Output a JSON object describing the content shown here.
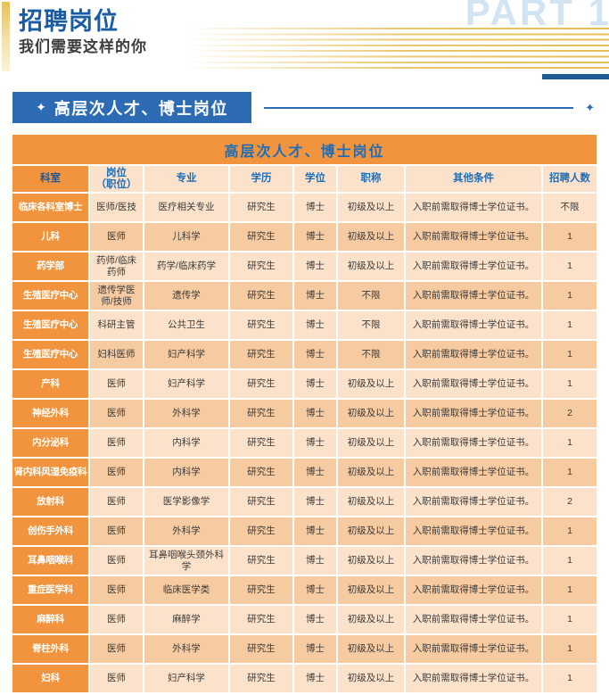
{
  "header": {
    "title": "招聘岗位",
    "subtitle": "我们需要这样的你",
    "part_label": "PART 1"
  },
  "section": {
    "star_icon": "✦",
    "title": "高层次人才、博士岗位"
  },
  "table": {
    "title": "高层次人才、博士岗位",
    "columns": [
      "科室",
      "岗位\n（职位）",
      "专业",
      "学历",
      "学位",
      "职称",
      "其他条件",
      "招聘人数"
    ],
    "rows": [
      [
        "临床各科室博士",
        "医师/医技",
        "医疗相关专业",
        "研究生",
        "博士",
        "初级及以上",
        "入职前需取得博士学位证书。",
        "不限"
      ],
      [
        "儿科",
        "医师",
        "儿科学",
        "研究生",
        "博士",
        "初级及以上",
        "入职前需取得博士学位证书。",
        "1"
      ],
      [
        "药学部",
        "药师/临床药师",
        "药学/临床药学",
        "研究生",
        "博士",
        "初级及以上",
        "入职前需取得博士学位证书。",
        "1"
      ],
      [
        "生殖医疗中心",
        "遗传学医师/技师",
        "遗传学",
        "研究生",
        "博士",
        "不限",
        "入职前需取得博士学位证书。",
        "1"
      ],
      [
        "生殖医疗中心",
        "科研主管",
        "公共卫生",
        "研究生",
        "博士",
        "不限",
        "入职前需取得博士学位证书。",
        "1"
      ],
      [
        "生殖医疗中心",
        "妇科医师",
        "妇产科学",
        "研究生",
        "博士",
        "不限",
        "入职前需取得博士学位证书。",
        "1"
      ],
      [
        "产科",
        "医师",
        "妇产科学",
        "研究生",
        "博士",
        "初级及以上",
        "入职前需取得博士学位证书。",
        "1"
      ],
      [
        "神经外科",
        "医师",
        "外科学",
        "研究生",
        "博士",
        "初级及以上",
        "入职前需取得博士学位证书。",
        "2"
      ],
      [
        "内分泌科",
        "医师",
        "内科学",
        "研究生",
        "博士",
        "初级及以上",
        "入职前需取得博士学位证书。",
        "1"
      ],
      [
        "肾内科风湿免疫科",
        "医师",
        "内科学",
        "研究生",
        "博士",
        "初级及以上",
        "入职前需取得博士学位证书。",
        "1"
      ],
      [
        "放射科",
        "医师",
        "医学影像学",
        "研究生",
        "博士",
        "初级及以上",
        "入职前需取得博士学位证书。",
        "2"
      ],
      [
        "创伤手外科",
        "医师",
        "外科学",
        "研究生",
        "博士",
        "初级及以上",
        "入职前需取得博士学位证书。",
        "1"
      ],
      [
        "耳鼻咽喉科",
        "医师",
        "耳鼻咽喉头颈外科学",
        "研究生",
        "博士",
        "初级及以上",
        "入职前需取得博士学位证书。",
        "1"
      ],
      [
        "重症医学科",
        "医师",
        "临床医学类",
        "研究生",
        "博士",
        "初级及以上",
        "入职前需取得博士学位证书。",
        "1"
      ],
      [
        "麻醉科",
        "医师",
        "麻醉学",
        "研究生",
        "博士",
        "初级及以上",
        "入职前需取得博士学位证书。",
        "1"
      ],
      [
        "脊柱外科",
        "医师",
        "外科学",
        "研究生",
        "博士",
        "初级及以上",
        "入职前需取得博士学位证书。",
        "1"
      ],
      [
        "妇科",
        "医师",
        "妇产科学",
        "研究生",
        "博士",
        "初级及以上",
        "入职前需取得博士学位证书。",
        "1"
      ]
    ]
  },
  "colors": {
    "orange": "#F2943D",
    "peach_light": "#FCE2CA",
    "peach_dark": "#F7CBA2",
    "section_blue": "#2D6CB4",
    "title_blue": "#1A5CA3",
    "table_text_blue": "#1B6EBB",
    "part_light_blue": "#D2E3F2",
    "gold": "#E6B84E",
    "navy": "#1E5C96"
  }
}
